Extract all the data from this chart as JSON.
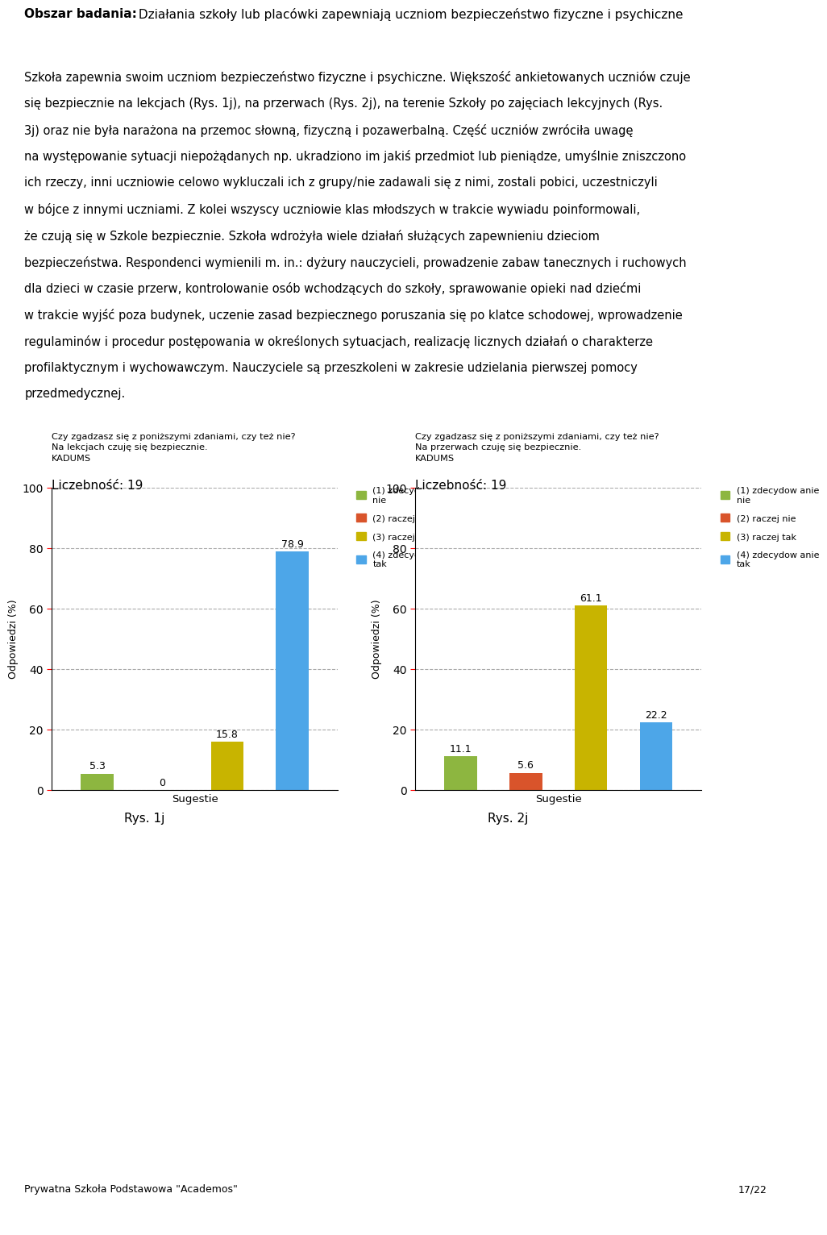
{
  "chart1": {
    "title_line1": "Czy zgadzasz się z poniższymi zdaniami, czy też nie?",
    "title_line2": "Na lekcjach czuję się bezpiecznie.",
    "title_line3": "KADUMS",
    "count_label": "Liczebność: 19",
    "values": [
      5.3,
      0,
      15.8,
      78.9
    ],
    "colors": [
      "#8db640",
      "#d9542b",
      "#c8b400",
      "#4da6e8"
    ],
    "xlabel": "Sugestie",
    "ylabel": "Odpowiedzi (%)",
    "caption": "Rys. 1j"
  },
  "chart2": {
    "title_line1": "Czy zgadzasz się z poniższymi zdaniami, czy też nie?",
    "title_line2": "Na przerwach czuję się bezpiecznie.",
    "title_line3": "KADUMS",
    "count_label": "Liczebność: 19",
    "values": [
      11.1,
      5.6,
      61.1,
      22.2
    ],
    "colors": [
      "#8db640",
      "#d9542b",
      "#c8b400",
      "#4da6e8"
    ],
    "xlabel": "Sugestie",
    "ylabel": "Odpowiedzi (%)",
    "caption": "Rys. 2j"
  },
  "legend_labels": [
    "(1) zdecydow anie\nnie",
    "(2) raczej nie",
    "(3) raczej tak",
    "(4) zdecydow anie\ntak"
  ],
  "legend_colors": [
    "#8db640",
    "#d9542b",
    "#c8b400",
    "#4da6e8"
  ],
  "ylim": [
    0,
    100
  ],
  "yticks": [
    0,
    20,
    40,
    60,
    80,
    100
  ],
  "bar_width": 0.5,
  "background_color": "#ffffff",
  "footer_school": "Prywatna Szkoła Podstawowa \"Academos\"",
  "footer_page": "17/22"
}
